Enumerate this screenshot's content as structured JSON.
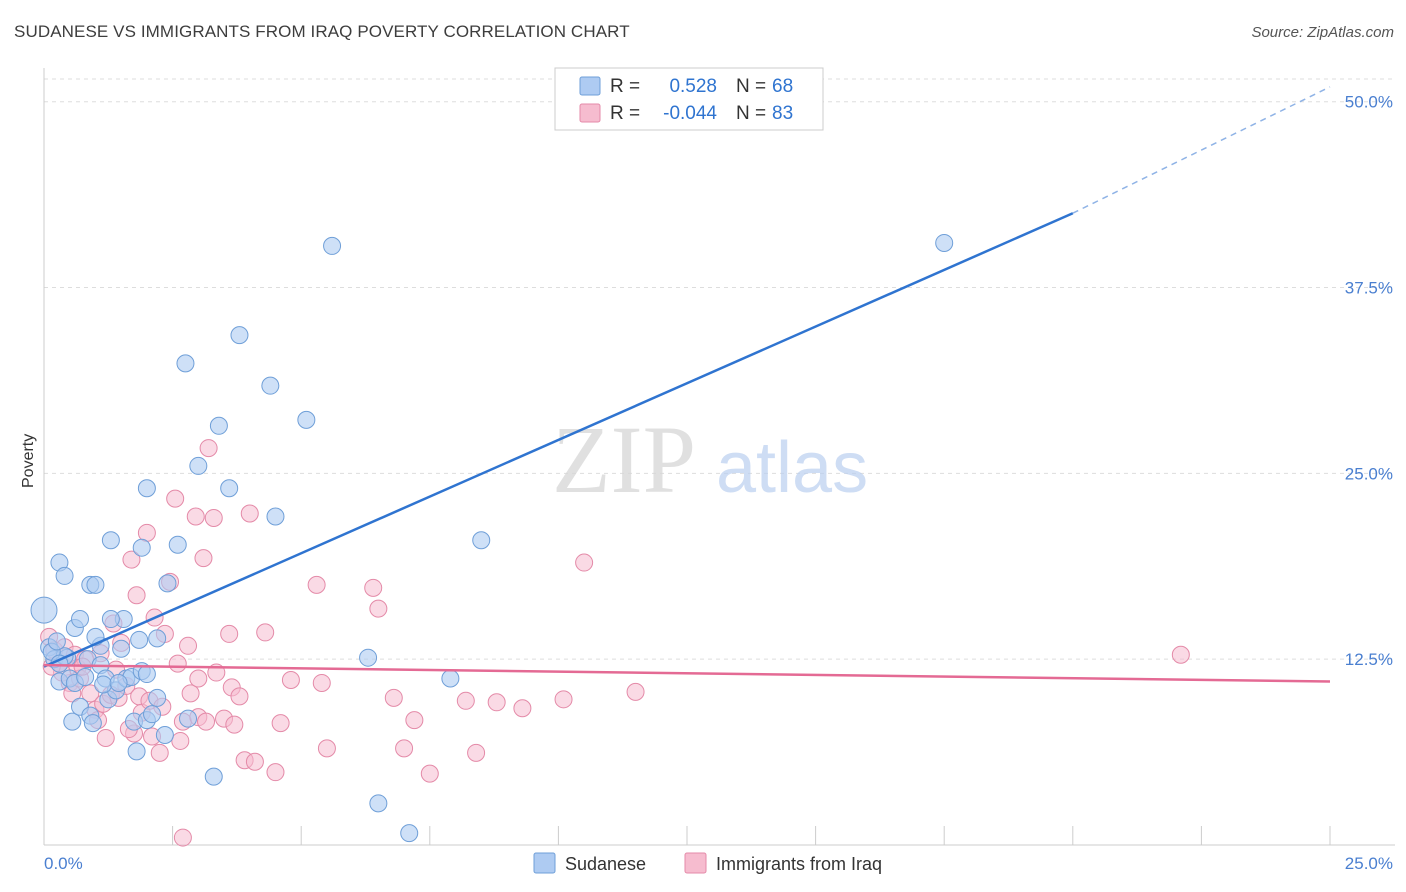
{
  "title": "SUDANESE VS IMMIGRANTS FROM IRAQ POVERTY CORRELATION CHART",
  "source": "Source: ZipAtlas.com",
  "watermark": {
    "zip": "ZIP",
    "atlas": "atlas"
  },
  "colors": {
    "sudanese_fill": "#aecbf2",
    "sudanese_stroke": "#6f9fd8",
    "sudanese_line": "#2f74d0",
    "iraq_fill": "#f6bccf",
    "iraq_stroke": "#e48aa8",
    "iraq_line": "#e46a94",
    "axis_label": "#4a7fd0",
    "grid": "#dddddd"
  },
  "legend": {
    "rows": [
      {
        "r_label": "R =",
        "r_value": "0.528",
        "n_label": "N =",
        "n_value": "68"
      },
      {
        "r_label": "R =",
        "r_value": "-0.044",
        "n_label": "N =",
        "n_value": "83"
      }
    ]
  },
  "bottom_legend": [
    "Sudanese",
    "Immigrants from Iraq"
  ],
  "chart_data": {
    "type": "scatter",
    "title": "SUDANESE VS IMMIGRANTS FROM IRAQ POVERTY CORRELATION CHART",
    "ylabel": "Poverty",
    "xlabel": "",
    "xlim": [
      0,
      25
    ],
    "ylim": [
      0,
      52
    ],
    "x_tick_labels": [
      {
        "x": 0,
        "label": "0.0%"
      },
      {
        "x": 25,
        "label": "25.0%"
      }
    ],
    "y_tick_labels": [
      {
        "y": 12.5,
        "label": "12.5%"
      },
      {
        "y": 25,
        "label": "25.0%"
      },
      {
        "y": 37.5,
        "label": "37.5%"
      },
      {
        "y": 50,
        "label": "50.0%"
      }
    ],
    "grid": true,
    "legend_position": "top-center",
    "series": [
      {
        "name": "Sudanese",
        "r": 0.528,
        "n": 68,
        "trend": {
          "x": [
            0,
            20
          ],
          "y": [
            12.0,
            42.5
          ],
          "dashed_to_x": 25,
          "dashed_to_y": 51.0
        },
        "points": [
          [
            0.0,
            15.8
          ],
          [
            0.3,
            19.0
          ],
          [
            0.4,
            18.1
          ],
          [
            0.6,
            14.6
          ],
          [
            0.7,
            15.2
          ],
          [
            0.9,
            17.5
          ],
          [
            1.1,
            13.4
          ],
          [
            1.3,
            20.5
          ],
          [
            2.0,
            24.0
          ],
          [
            1.9,
            20.0
          ],
          [
            0.1,
            13.3
          ],
          [
            0.2,
            12.5
          ],
          [
            0.3,
            11.0
          ],
          [
            0.45,
            12.6
          ],
          [
            0.5,
            11.2
          ],
          [
            0.55,
            8.3
          ],
          [
            0.6,
            10.9
          ],
          [
            0.7,
            9.3
          ],
          [
            0.8,
            11.3
          ],
          [
            0.85,
            12.5
          ],
          [
            0.9,
            8.7
          ],
          [
            0.95,
            8.2
          ],
          [
            1.0,
            14.0
          ],
          [
            1.1,
            12.1
          ],
          [
            1.2,
            11.2
          ],
          [
            1.25,
            9.8
          ],
          [
            1.4,
            10.4
          ],
          [
            1.5,
            13.2
          ],
          [
            1.55,
            15.2
          ],
          [
            1.6,
            11.2
          ],
          [
            1.7,
            11.3
          ],
          [
            1.75,
            8.3
          ],
          [
            1.8,
            6.3
          ],
          [
            1.85,
            13.8
          ],
          [
            1.9,
            11.7
          ],
          [
            2.0,
            8.4
          ],
          [
            2.1,
            8.8
          ],
          [
            2.2,
            9.9
          ],
          [
            2.35,
            7.4
          ],
          [
            2.4,
            17.6
          ],
          [
            2.6,
            20.2
          ],
          [
            2.75,
            32.4
          ],
          [
            2.8,
            8.5
          ],
          [
            3.0,
            25.5
          ],
          [
            3.3,
            4.6
          ],
          [
            3.4,
            28.2
          ],
          [
            3.6,
            24.0
          ],
          [
            3.8,
            34.3
          ],
          [
            4.4,
            30.9
          ],
          [
            4.5,
            22.1
          ],
          [
            5.1,
            28.6
          ],
          [
            5.6,
            40.3
          ],
          [
            6.3,
            12.6
          ],
          [
            6.5,
            2.8
          ],
          [
            7.1,
            0.8
          ],
          [
            7.9,
            11.2
          ],
          [
            8.5,
            20.5
          ],
          [
            17.5,
            40.5
          ],
          [
            1.3,
            15.2
          ],
          [
            0.4,
            12.7
          ],
          [
            1.0,
            17.5
          ],
          [
            0.15,
            13.0
          ],
          [
            0.3,
            12.2
          ],
          [
            1.15,
            10.8
          ],
          [
            2.2,
            13.9
          ],
          [
            1.45,
            10.9
          ],
          [
            0.25,
            13.7
          ],
          [
            2.0,
            11.5
          ]
        ]
      },
      {
        "name": "Immigrants from Iraq",
        "r": -0.044,
        "n": 83,
        "trend": {
          "x": [
            0,
            25
          ],
          "y": [
            12.1,
            11.0
          ]
        },
        "points": [
          [
            0.2,
            13.1
          ],
          [
            0.3,
            12.2
          ],
          [
            0.4,
            13.3
          ],
          [
            0.5,
            10.9
          ],
          [
            0.55,
            10.2
          ],
          [
            0.6,
            12.8
          ],
          [
            0.65,
            11.9
          ],
          [
            0.7,
            11.2
          ],
          [
            0.8,
            12.5
          ],
          [
            0.9,
            10.2
          ],
          [
            1.0,
            9.1
          ],
          [
            1.05,
            8.4
          ],
          [
            1.1,
            12.9
          ],
          [
            1.15,
            9.5
          ],
          [
            1.2,
            7.2
          ],
          [
            1.3,
            10.1
          ],
          [
            1.35,
            14.9
          ],
          [
            1.4,
            11.8
          ],
          [
            1.45,
            9.9
          ],
          [
            1.5,
            13.6
          ],
          [
            1.6,
            10.7
          ],
          [
            1.7,
            19.2
          ],
          [
            1.75,
            7.5
          ],
          [
            1.8,
            16.8
          ],
          [
            1.85,
            10.0
          ],
          [
            1.9,
            8.9
          ],
          [
            2.0,
            21.0
          ],
          [
            2.05,
            9.7
          ],
          [
            2.1,
            7.3
          ],
          [
            2.15,
            15.3
          ],
          [
            2.25,
            6.2
          ],
          [
            2.3,
            9.3
          ],
          [
            2.35,
            14.2
          ],
          [
            2.45,
            17.7
          ],
          [
            2.55,
            23.3
          ],
          [
            2.6,
            12.2
          ],
          [
            2.65,
            7.0
          ],
          [
            2.7,
            8.3
          ],
          [
            2.8,
            13.4
          ],
          [
            2.85,
            10.2
          ],
          [
            2.95,
            22.1
          ],
          [
            3.0,
            8.6
          ],
          [
            3.1,
            19.3
          ],
          [
            3.15,
            8.3
          ],
          [
            3.2,
            26.7
          ],
          [
            3.3,
            22.0
          ],
          [
            3.35,
            11.6
          ],
          [
            3.5,
            8.5
          ],
          [
            3.6,
            14.2
          ],
          [
            3.65,
            10.6
          ],
          [
            3.7,
            8.1
          ],
          [
            3.8,
            10.0
          ],
          [
            3.9,
            5.7
          ],
          [
            4.0,
            22.3
          ],
          [
            4.3,
            14.3
          ],
          [
            4.5,
            4.9
          ],
          [
            4.6,
            8.2
          ],
          [
            4.8,
            11.1
          ],
          [
            5.3,
            17.5
          ],
          [
            5.4,
            10.9
          ],
          [
            5.5,
            6.5
          ],
          [
            6.4,
            17.3
          ],
          [
            6.5,
            15.9
          ],
          [
            6.8,
            9.9
          ],
          [
            7.0,
            6.5
          ],
          [
            7.2,
            8.4
          ],
          [
            7.5,
            4.8
          ],
          [
            8.2,
            9.7
          ],
          [
            8.4,
            6.2
          ],
          [
            8.8,
            9.6
          ],
          [
            9.3,
            9.2
          ],
          [
            10.1,
            9.8
          ],
          [
            10.5,
            19.0
          ],
          [
            11.5,
            10.3
          ],
          [
            22.1,
            12.8
          ],
          [
            0.1,
            14.0
          ],
          [
            0.35,
            11.6
          ],
          [
            1.65,
            7.8
          ],
          [
            2.7,
            0.5
          ],
          [
            3.0,
            11.2
          ],
          [
            4.1,
            5.6
          ],
          [
            0.75,
            12.0
          ],
          [
            0.15,
            12.0
          ]
        ]
      }
    ]
  }
}
